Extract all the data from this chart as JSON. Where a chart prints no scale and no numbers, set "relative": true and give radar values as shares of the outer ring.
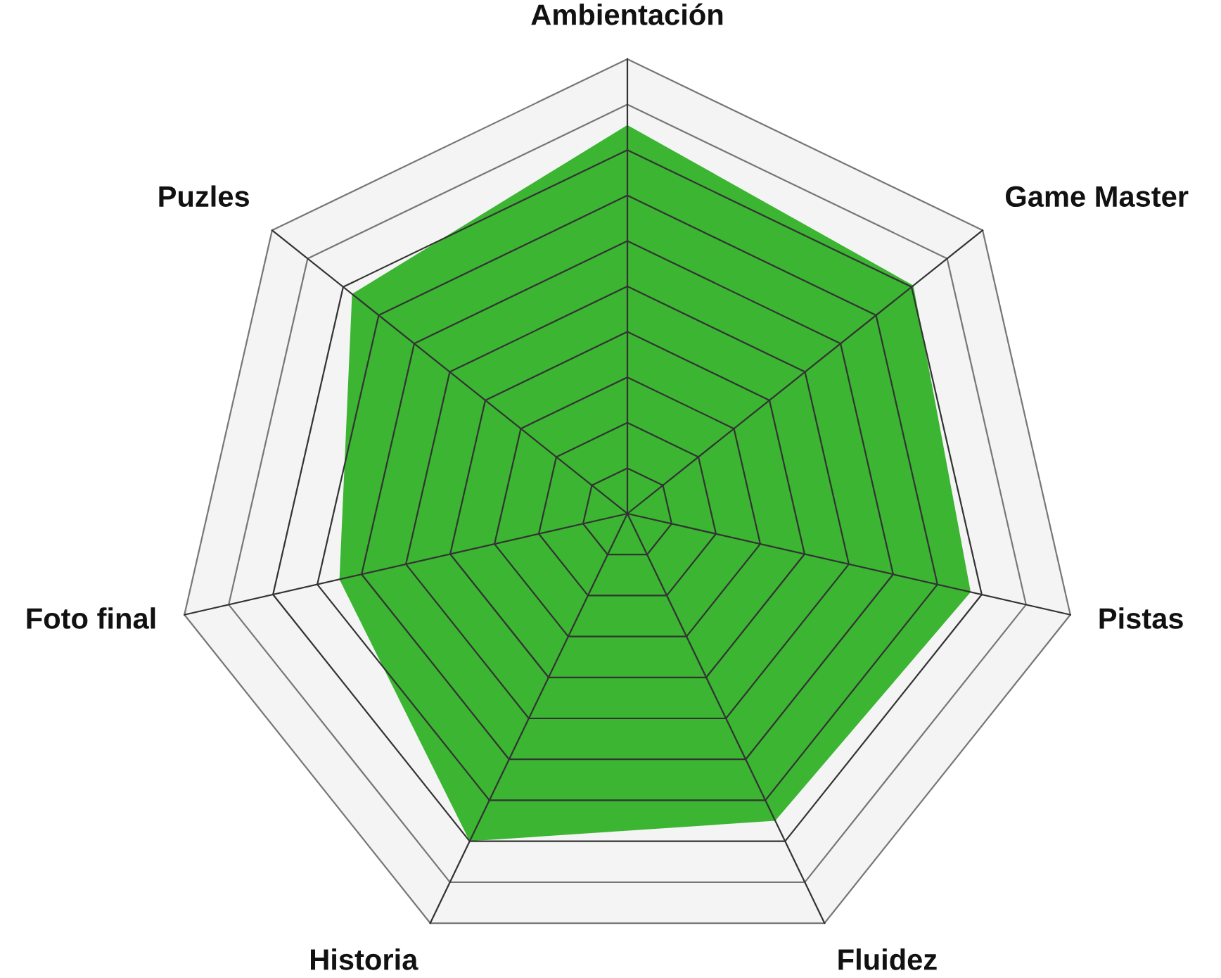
{
  "chart_data": {
    "type": "radar",
    "relative": true,
    "grid": true,
    "legend": false,
    "categories": [
      "Ambientación",
      "Game Master",
      "Pistas",
      "Fluidez",
      "Historia",
      "Foto final",
      "Puzles"
    ],
    "series": [
      {
        "color": "#3bb532",
        "values": [
          0.855,
          0.805,
          0.775,
          0.75,
          0.8,
          0.65,
          0.775
        ]
      }
    ]
  }
}
